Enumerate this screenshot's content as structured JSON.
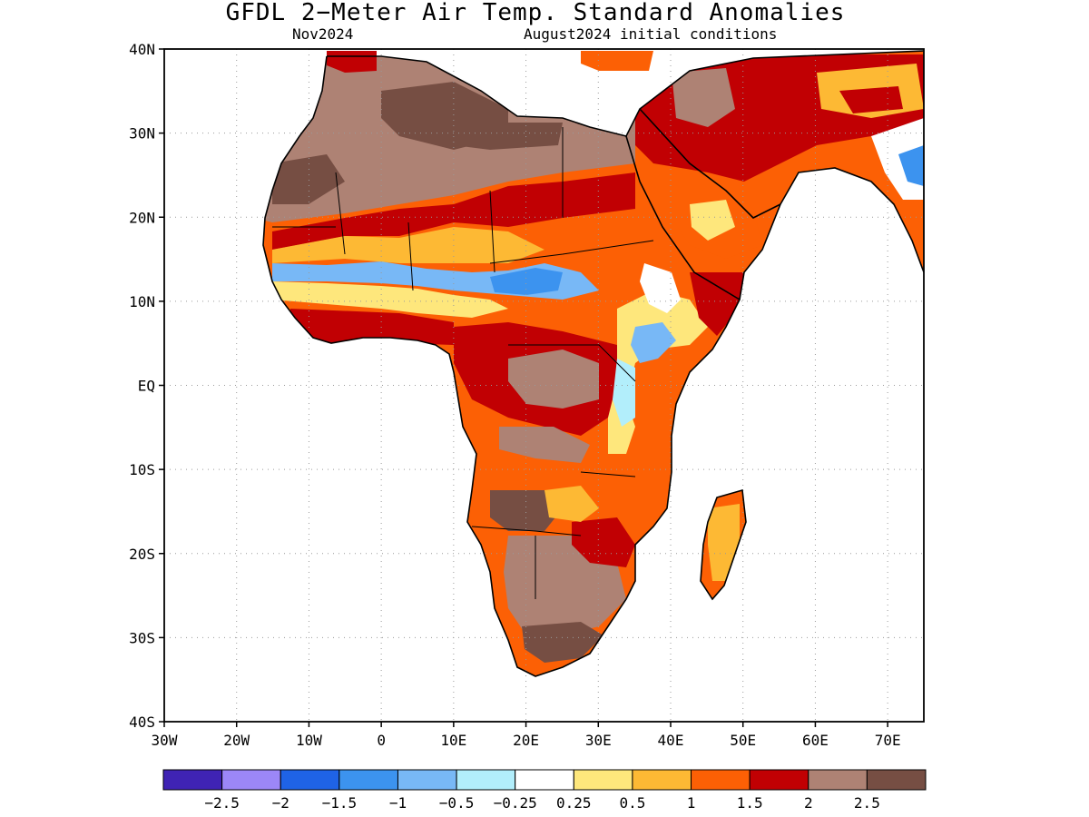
{
  "header": {
    "title": "GFDL 2−Meter Air Temp. Standard Anomalies",
    "valid_month": "Nov2024",
    "init_conditions": "August2024 initial conditions"
  },
  "map": {
    "lon_range": [
      -30,
      75
    ],
    "lat_range": [
      -40,
      40
    ],
    "lat_ticks": [
      {
        "value": 40,
        "label": "40N"
      },
      {
        "value": 30,
        "label": "30N"
      },
      {
        "value": 20,
        "label": "20N"
      },
      {
        "value": 10,
        "label": "10N"
      },
      {
        "value": 0,
        "label": "EQ"
      },
      {
        "value": -10,
        "label": "10S"
      },
      {
        "value": -20,
        "label": "20S"
      },
      {
        "value": -30,
        "label": "30S"
      },
      {
        "value": -40,
        "label": "40S"
      }
    ],
    "lon_ticks": [
      {
        "value": -30,
        "label": "30W"
      },
      {
        "value": -20,
        "label": "20W"
      },
      {
        "value": -10,
        "label": "10W"
      },
      {
        "value": 0,
        "label": "0"
      },
      {
        "value": 10,
        "label": "10E"
      },
      {
        "value": 20,
        "label": "20E"
      },
      {
        "value": 30,
        "label": "30E"
      },
      {
        "value": 40,
        "label": "40E"
      },
      {
        "value": 50,
        "label": "50E"
      },
      {
        "value": 60,
        "label": "60E"
      },
      {
        "value": 70,
        "label": "70E"
      }
    ],
    "grid": "dotted"
  },
  "colorbar": {
    "colors": [
      "#3f23b4",
      "#9c87f7",
      "#1f63e6",
      "#3c93ef",
      "#78b8f6",
      "#b2eefb",
      "#ffffff",
      "#fee77c",
      "#fdb934",
      "#fc6005",
      "#c10003",
      "#ae8274",
      "#764e43"
    ],
    "labels": [
      "−2.5",
      "−2",
      "−1.5",
      "−1",
      "−0.5",
      "−0.25",
      "0.25",
      "0.5",
      "1",
      "1.5",
      "2",
      "2.5"
    ]
  }
}
